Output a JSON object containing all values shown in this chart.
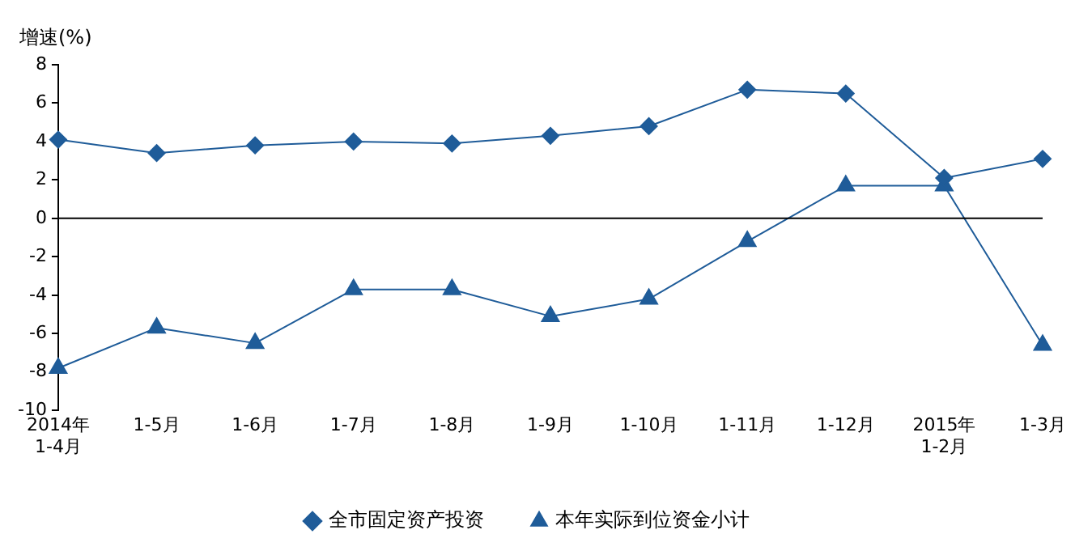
{
  "chart_data": {
    "type": "line",
    "ylabel": "增速(%)",
    "categories": [
      "2014年\n1-4月",
      "1-5月",
      "1-6月",
      "1-7月",
      "1-8月",
      "1-9月",
      "1-10月",
      "1-11月",
      "1-12月",
      "2015年\n1-2月",
      "1-3月"
    ],
    "series": [
      {
        "name": "全市固定资产投资",
        "color": "#1f5c99",
        "marker": "diamond",
        "values": [
          4.1,
          3.4,
          3.8,
          4.0,
          3.9,
          4.3,
          4.8,
          6.7,
          6.5,
          2.1,
          3.1
        ]
      },
      {
        "name": "本年实际到位资金小计",
        "color": "#1f5c99",
        "marker": "triangle",
        "values": [
          -7.8,
          -5.7,
          -6.5,
          -3.7,
          -3.7,
          -5.1,
          -4.2,
          -1.2,
          1.7,
          1.7,
          -6.6
        ]
      }
    ],
    "ylim": [
      -10,
      8
    ],
    "yticks": [
      -10,
      -8,
      -6,
      -4,
      -2,
      0,
      2,
      4,
      6,
      8
    ],
    "ref_lines": [
      {
        "axis": "y",
        "value": 0,
        "color": "#000000"
      }
    ],
    "grid": false,
    "legend": "bottom",
    "line_style": "solid"
  }
}
